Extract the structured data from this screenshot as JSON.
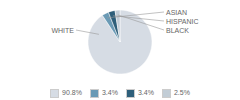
{
  "chart_data": {
    "type": "pie",
    "categories": [
      "WHITE",
      "ASIAN",
      "HISPANIC",
      "BLACK"
    ],
    "values": [
      90.8,
      3.4,
      3.4,
      2.5
    ],
    "value_labels": [
      "90.8%",
      "3.4%",
      "3.4%",
      "2.5%"
    ],
    "colors": [
      "#d6dce4",
      "#6a9ab5",
      "#2e5f7a",
      "#c2cdd6"
    ],
    "legend": "bottom"
  }
}
